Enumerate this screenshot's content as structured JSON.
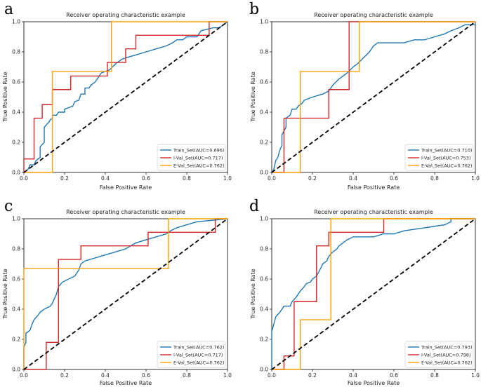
{
  "chart_data": [
    {
      "type": "line",
      "panel_label": "a",
      "title": "Receiver operating characteristic example",
      "xlabel": "False Positive Rate",
      "ylabel": "True Positive Rate",
      "xlim": [
        0,
        1
      ],
      "ylim": [
        0,
        1
      ],
      "ticks": [
        "0.0",
        "0.2",
        "0.4",
        "0.6",
        "0.8",
        "1.0"
      ],
      "tick_values": [
        0,
        0.2,
        0.4,
        0.6,
        0.8,
        1.0
      ],
      "legend_position": "lower-right",
      "diagonal": "black dashed",
      "series": [
        {
          "name": "Train_Set(AUC=0.696)",
          "color": "#1f77b4",
          "points": [
            [
              0,
              0
            ],
            [
              0.02,
              0.02
            ],
            [
              0.03,
              0.05
            ],
            [
              0.05,
              0.05
            ],
            [
              0.06,
              0.08
            ],
            [
              0.08,
              0.1
            ],
            [
              0.08,
              0.17
            ],
            [
              0.1,
              0.2
            ],
            [
              0.1,
              0.3
            ],
            [
              0.12,
              0.33
            ],
            [
              0.13,
              0.35
            ],
            [
              0.14,
              0.36
            ],
            [
              0.14,
              0.38
            ],
            [
              0.16,
              0.38
            ],
            [
              0.17,
              0.4
            ],
            [
              0.2,
              0.4
            ],
            [
              0.2,
              0.42
            ],
            [
              0.24,
              0.44
            ],
            [
              0.25,
              0.47
            ],
            [
              0.27,
              0.48
            ],
            [
              0.28,
              0.52
            ],
            [
              0.3,
              0.52
            ],
            [
              0.3,
              0.56
            ],
            [
              0.32,
              0.56
            ],
            [
              0.33,
              0.58
            ],
            [
              0.35,
              0.6
            ],
            [
              0.36,
              0.62
            ],
            [
              0.38,
              0.66
            ],
            [
              0.42,
              0.68
            ],
            [
              0.45,
              0.72
            ],
            [
              0.48,
              0.75
            ],
            [
              0.5,
              0.76
            ],
            [
              0.55,
              0.78
            ],
            [
              0.6,
              0.8
            ],
            [
              0.65,
              0.82
            ],
            [
              0.7,
              0.84
            ],
            [
              0.73,
              0.86
            ],
            [
              0.75,
              0.88
            ],
            [
              0.78,
              0.88
            ],
            [
              0.8,
              0.9
            ],
            [
              0.85,
              0.9
            ],
            [
              0.87,
              0.94
            ],
            [
              0.93,
              0.96
            ],
            [
              0.96,
              0.96
            ],
            [
              0.98,
              0.98
            ],
            [
              1.0,
              1.0
            ]
          ]
        },
        {
          "name": "I-Val_Set(AUC=0.717)",
          "color": "#d62728",
          "points": [
            [
              0,
              0
            ],
            [
              0,
              0.09
            ],
            [
              0.05,
              0.09
            ],
            [
              0.05,
              0.36
            ],
            [
              0.09,
              0.36
            ],
            [
              0.09,
              0.45
            ],
            [
              0.14,
              0.45
            ],
            [
              0.14,
              0.55
            ],
            [
              0.23,
              0.55
            ],
            [
              0.23,
              0.64
            ],
            [
              0.41,
              0.64
            ],
            [
              0.41,
              0.73
            ],
            [
              0.5,
              0.73
            ],
            [
              0.5,
              0.82
            ],
            [
              0.55,
              0.82
            ],
            [
              0.55,
              0.91
            ],
            [
              0.91,
              0.91
            ],
            [
              0.91,
              1.0
            ],
            [
              1.0,
              1.0
            ]
          ]
        },
        {
          "name": "E-Val_Set(AUC=0.762)",
          "color": "#ff9f00",
          "points": [
            [
              0,
              0
            ],
            [
              0.14,
              0
            ],
            [
              0.14,
              0.67
            ],
            [
              0.43,
              0.67
            ],
            [
              0.43,
              1.0
            ],
            [
              1.0,
              1.0
            ]
          ]
        }
      ]
    },
    {
      "type": "line",
      "panel_label": "b",
      "title": "Receiver operating characteristic example",
      "xlabel": "False Positive Rate",
      "ylabel": "True Positive Rate",
      "xlim": [
        0,
        1
      ],
      "ylim": [
        0,
        1
      ],
      "ticks": [
        "0.0",
        "0.2",
        "0.4",
        "0.6",
        "0.8",
        "1.0"
      ],
      "tick_values": [
        0,
        0.2,
        0.4,
        0.6,
        0.8,
        1.0
      ],
      "legend_position": "lower-right",
      "diagonal": "black dashed",
      "series": [
        {
          "name": "Train_Set(AUC=0.710)",
          "color": "#1f77b4",
          "points": [
            [
              0,
              0
            ],
            [
              0.01,
              0.02
            ],
            [
              0.02,
              0.08
            ],
            [
              0.03,
              0.1
            ],
            [
              0.04,
              0.15
            ],
            [
              0.05,
              0.18
            ],
            [
              0.05,
              0.25
            ],
            [
              0.07,
              0.3
            ],
            [
              0.07,
              0.36
            ],
            [
              0.09,
              0.38
            ],
            [
              0.1,
              0.42
            ],
            [
              0.12,
              0.42
            ],
            [
              0.13,
              0.44
            ],
            [
              0.15,
              0.46
            ],
            [
              0.16,
              0.48
            ],
            [
              0.2,
              0.5
            ],
            [
              0.25,
              0.52
            ],
            [
              0.28,
              0.54
            ],
            [
              0.3,
              0.58
            ],
            [
              0.33,
              0.62
            ],
            [
              0.35,
              0.64
            ],
            [
              0.37,
              0.66
            ],
            [
              0.4,
              0.7
            ],
            [
              0.42,
              0.72
            ],
            [
              0.45,
              0.76
            ],
            [
              0.48,
              0.8
            ],
            [
              0.5,
              0.84
            ],
            [
              0.52,
              0.86
            ],
            [
              0.6,
              0.86
            ],
            [
              0.65,
              0.86
            ],
            [
              0.7,
              0.88
            ],
            [
              0.75,
              0.88
            ],
            [
              0.8,
              0.9
            ],
            [
              0.85,
              0.92
            ],
            [
              0.88,
              0.94
            ],
            [
              0.92,
              0.96
            ],
            [
              0.95,
              0.98
            ],
            [
              1.0,
              0.98
            ]
          ]
        },
        {
          "name": "I-Val_Set(AUC=0.753)",
          "color": "#d62728",
          "points": [
            [
              0,
              0
            ],
            [
              0.06,
              0
            ],
            [
              0.06,
              0.36
            ],
            [
              0.28,
              0.36
            ],
            [
              0.28,
              0.55
            ],
            [
              0.38,
              0.55
            ],
            [
              0.38,
              1.0
            ],
            [
              1.0,
              1.0
            ]
          ]
        },
        {
          "name": "E-Val_Set(AUC=0.762)",
          "color": "#ff9f00",
          "points": [
            [
              0,
              0
            ],
            [
              0.14,
              0
            ],
            [
              0.14,
              0.67
            ],
            [
              0.43,
              0.67
            ],
            [
              0.43,
              1.0
            ],
            [
              1.0,
              1.0
            ]
          ]
        }
      ]
    },
    {
      "type": "line",
      "panel_label": "c",
      "title": "Receiver operating characteristic example",
      "xlabel": "False Positive Rate",
      "ylabel": "True Positive Rate",
      "xlim": [
        0,
        1
      ],
      "ylim": [
        0,
        1
      ],
      "ticks": [
        "0.0",
        "0.2",
        "0.4",
        "0.6",
        "0.8",
        "1.0"
      ],
      "tick_values": [
        0,
        0.2,
        0.4,
        0.6,
        0.8,
        1.0
      ],
      "legend_position": "lower-right",
      "diagonal": "black dashed",
      "series": [
        {
          "name": "Train_Set(AUC=0.762)",
          "color": "#1f77b4",
          "points": [
            [
              0,
              0
            ],
            [
              0,
              0.15
            ],
            [
              0.01,
              0.18
            ],
            [
              0.01,
              0.24
            ],
            [
              0.03,
              0.26
            ],
            [
              0.04,
              0.3
            ],
            [
              0.05,
              0.33
            ],
            [
              0.07,
              0.36
            ],
            [
              0.08,
              0.38
            ],
            [
              0.1,
              0.4
            ],
            [
              0.13,
              0.42
            ],
            [
              0.14,
              0.44
            ],
            [
              0.15,
              0.47
            ],
            [
              0.16,
              0.5
            ],
            [
              0.17,
              0.55
            ],
            [
              0.19,
              0.58
            ],
            [
              0.22,
              0.6
            ],
            [
              0.25,
              0.62
            ],
            [
              0.27,
              0.66
            ],
            [
              0.28,
              0.7
            ],
            [
              0.3,
              0.72
            ],
            [
              0.35,
              0.74
            ],
            [
              0.4,
              0.76
            ],
            [
              0.45,
              0.78
            ],
            [
              0.5,
              0.8
            ],
            [
              0.55,
              0.84
            ],
            [
              0.6,
              0.86
            ],
            [
              0.65,
              0.88
            ],
            [
              0.7,
              0.9
            ],
            [
              0.72,
              0.92
            ],
            [
              0.75,
              0.94
            ],
            [
              0.8,
              0.96
            ],
            [
              0.85,
              0.98
            ],
            [
              1.0,
              1.0
            ]
          ]
        },
        {
          "name": "I-Val_Set(AUC=0.717)",
          "color": "#d62728",
          "points": [
            [
              0,
              0
            ],
            [
              0.11,
              0
            ],
            [
              0.11,
              0.18
            ],
            [
              0.17,
              0.18
            ],
            [
              0.17,
              0.73
            ],
            [
              0.28,
              0.73
            ],
            [
              0.28,
              0.82
            ],
            [
              0.61,
              0.82
            ],
            [
              0.61,
              0.91
            ],
            [
              0.94,
              0.91
            ],
            [
              0.94,
              1.0
            ],
            [
              1.0,
              1.0
            ]
          ]
        },
        {
          "name": "E-Val_Set(AUC=0.762)",
          "color": "#ff9f00",
          "points": [
            [
              0,
              0
            ],
            [
              0,
              0.67
            ],
            [
              0.71,
              0.67
            ],
            [
              0.71,
              1.0
            ],
            [
              1.0,
              1.0
            ]
          ]
        }
      ]
    },
    {
      "type": "line",
      "panel_label": "d",
      "title": "Receiver operating characteristic example",
      "xlabel": "False Positive Rate",
      "ylabel": "True Positive Rate",
      "xlim": [
        0,
        1
      ],
      "ylim": [
        0,
        1
      ],
      "ticks": [
        "0.0",
        "0.2",
        "0.4",
        "0.6",
        "0.8",
        "1.0"
      ],
      "tick_values": [
        0,
        0.2,
        0.4,
        0.6,
        0.8,
        1.0
      ],
      "legend_position": "lower-right",
      "diagonal": "black dashed",
      "series": [
        {
          "name": "Train_Set(AUC=0.793)",
          "color": "#1f77b4",
          "points": [
            [
              0,
              0
            ],
            [
              0,
              0.25
            ],
            [
              0.01,
              0.3
            ],
            [
              0.02,
              0.35
            ],
            [
              0.04,
              0.38
            ],
            [
              0.06,
              0.42
            ],
            [
              0.09,
              0.42
            ],
            [
              0.1,
              0.45
            ],
            [
              0.12,
              0.48
            ],
            [
              0.14,
              0.52
            ],
            [
              0.16,
              0.55
            ],
            [
              0.17,
              0.57
            ],
            [
              0.19,
              0.58
            ],
            [
              0.2,
              0.6
            ],
            [
              0.22,
              0.62
            ],
            [
              0.24,
              0.67
            ],
            [
              0.25,
              0.7
            ],
            [
              0.27,
              0.72
            ],
            [
              0.28,
              0.75
            ],
            [
              0.3,
              0.78
            ],
            [
              0.32,
              0.8
            ],
            [
              0.33,
              0.82
            ],
            [
              0.35,
              0.84
            ],
            [
              0.37,
              0.86
            ],
            [
              0.4,
              0.88
            ],
            [
              0.5,
              0.88
            ],
            [
              0.55,
              0.9
            ],
            [
              0.6,
              0.9
            ],
            [
              0.65,
              0.92
            ],
            [
              0.7,
              0.93
            ],
            [
              0.75,
              0.94
            ],
            [
              0.8,
              0.95
            ],
            [
              0.85,
              0.96
            ],
            [
              0.88,
              0.98
            ],
            [
              0.88,
              1.0
            ],
            [
              1.0,
              1.0
            ]
          ]
        },
        {
          "name": "I-Val_Set(AUC=0.798)",
          "color": "#d62728",
          "points": [
            [
              0,
              0
            ],
            [
              0.06,
              0
            ],
            [
              0.06,
              0.09
            ],
            [
              0.11,
              0.09
            ],
            [
              0.11,
              0.45
            ],
            [
              0.22,
              0.45
            ],
            [
              0.22,
              0.82
            ],
            [
              0.28,
              0.82
            ],
            [
              0.28,
              0.91
            ],
            [
              0.55,
              0.91
            ],
            [
              0.55,
              1.0
            ],
            [
              1.0,
              1.0
            ]
          ]
        },
        {
          "name": "E-Val_Set(AUC=0.762)",
          "color": "#ff9f00",
          "points": [
            [
              0,
              0
            ],
            [
              0.14,
              0
            ],
            [
              0.14,
              0.33
            ],
            [
              0.29,
              0.33
            ],
            [
              0.29,
              1.0
            ],
            [
              1.0,
              1.0
            ]
          ]
        }
      ]
    }
  ]
}
